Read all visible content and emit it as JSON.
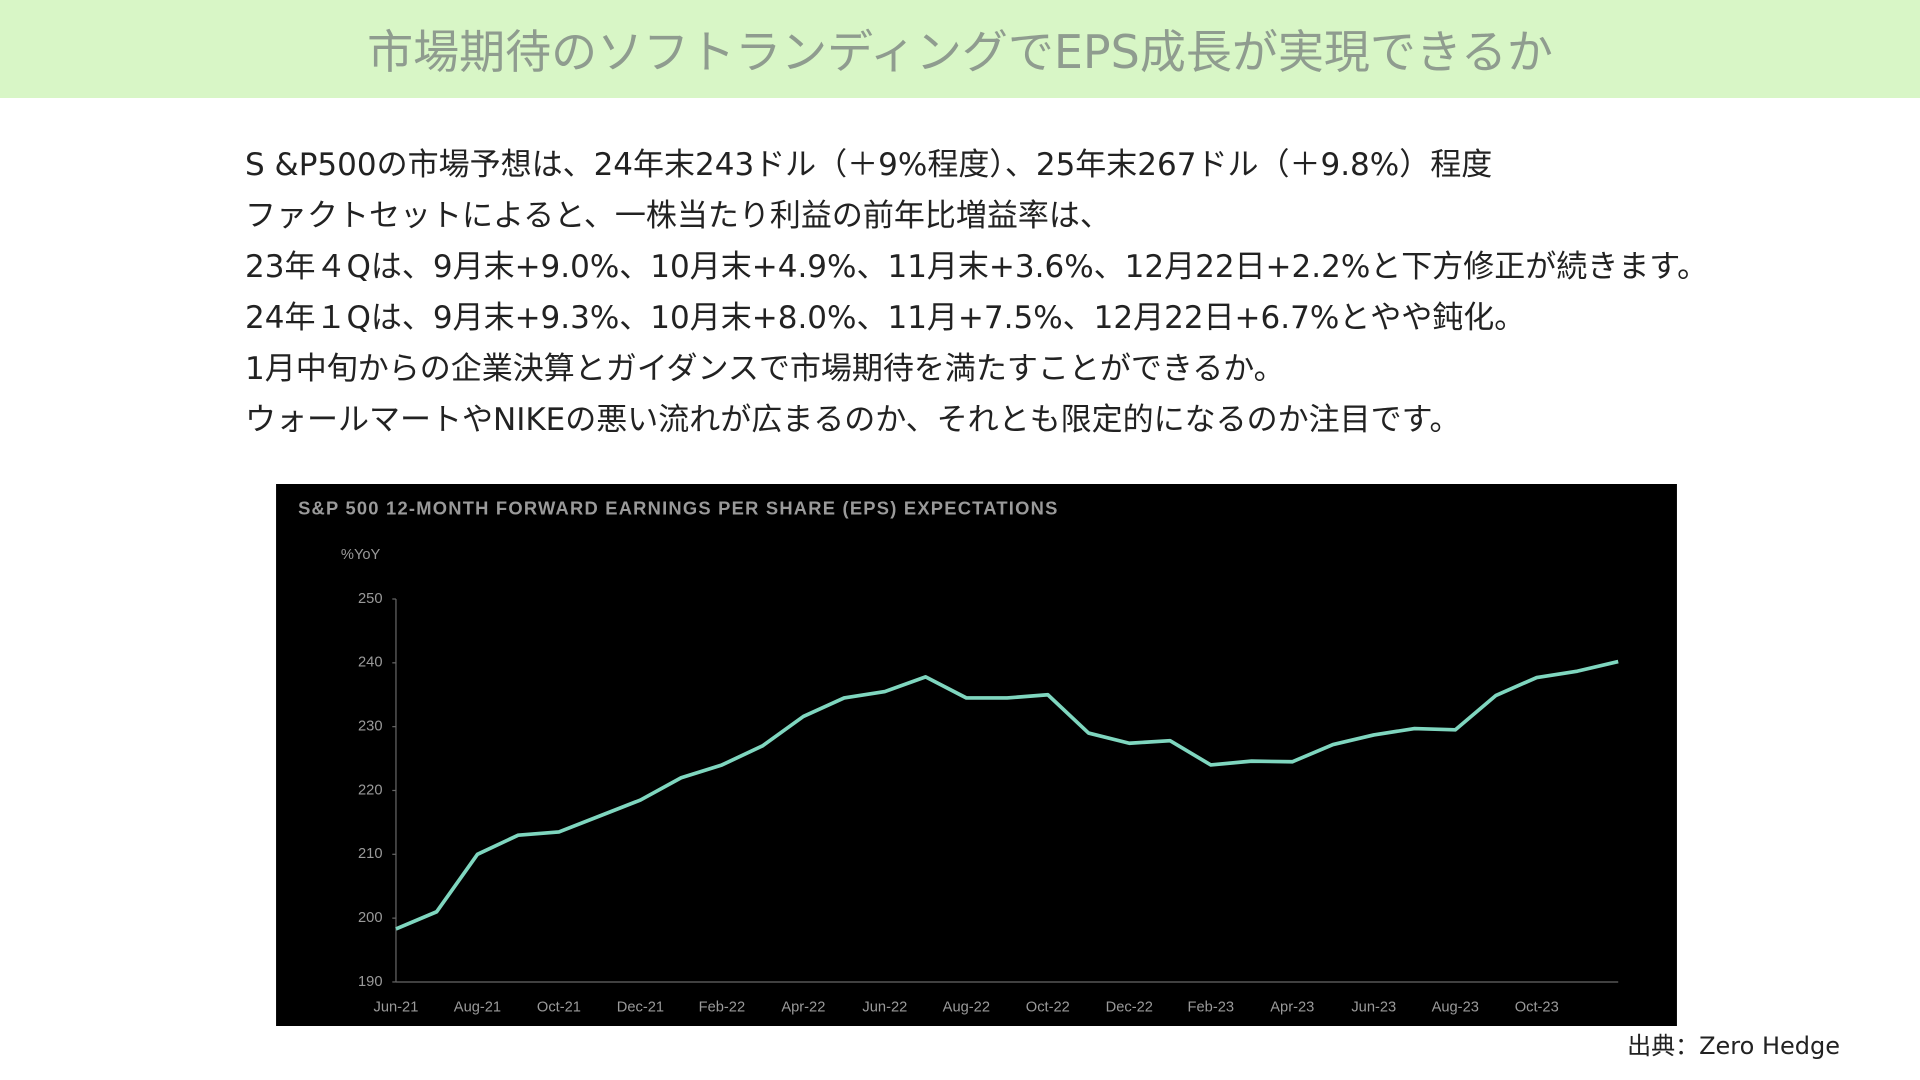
{
  "title": "市場期待のソフトランディングでEPS成長が実現できるか",
  "paragraphs": [
    "S &P500の市場予想は、24年末243ドル（＋9%程度）、25年末267ドル（＋9.8%）程度",
    "ファクトセットによると、一株当たり利益の前年比増益率は、",
    "23年４Qは、9月末+9.0%、10月末+4.9%、11月末+3.6%、12月22日+2.2%と下方修正が続きます。",
    "24年１Qは、9月末+9.3%、10月末+8.0%、11月+7.5%、12月22日+6.7%とやや鈍化。",
    "1月中旬からの企業決算とガイダンスで市場期待を満たすことができるか。",
    "ウォールマートやNIKEの悪い流れが広まるのか、それとも限定的になるのか注目です。"
  ],
  "chart_data": {
    "type": "line",
    "title": "S&P 500 12-MONTH FORWARD EARNINGS PER SHARE (EPS) EXPECTATIONS",
    "y_label": "%YoY",
    "categories": [
      "Jun-21",
      null,
      "Aug-21",
      null,
      "Oct-21",
      null,
      "Dec-21",
      null,
      "Feb-22",
      null,
      "Apr-22",
      null,
      "Jun-22",
      null,
      "Aug-22",
      null,
      "Oct-22",
      null,
      "Dec-22",
      null,
      "Feb-23",
      null,
      "Apr-23",
      null,
      "Jun-23",
      null,
      "Aug-23",
      null,
      "Oct-23",
      null,
      null
    ],
    "series": [
      {
        "name": "EPS",
        "color": "#7fd6bf",
        "values": [
          198.3,
          201,
          210,
          213,
          213.5,
          216,
          218.5,
          222,
          224,
          227,
          231.6,
          234.5,
          235.5,
          237.8,
          234.5,
          234.5,
          235,
          229,
          227.4,
          227.8,
          224,
          224.6,
          224.5,
          227.2,
          228.7,
          229.7,
          229.5,
          234.9,
          237.7,
          238.7,
          240.2
        ]
      }
    ],
    "ylim": [
      190,
      250
    ],
    "yticks": [
      190,
      200,
      210,
      220,
      230,
      240,
      250
    ]
  },
  "source": "出典：Zero Hedge"
}
